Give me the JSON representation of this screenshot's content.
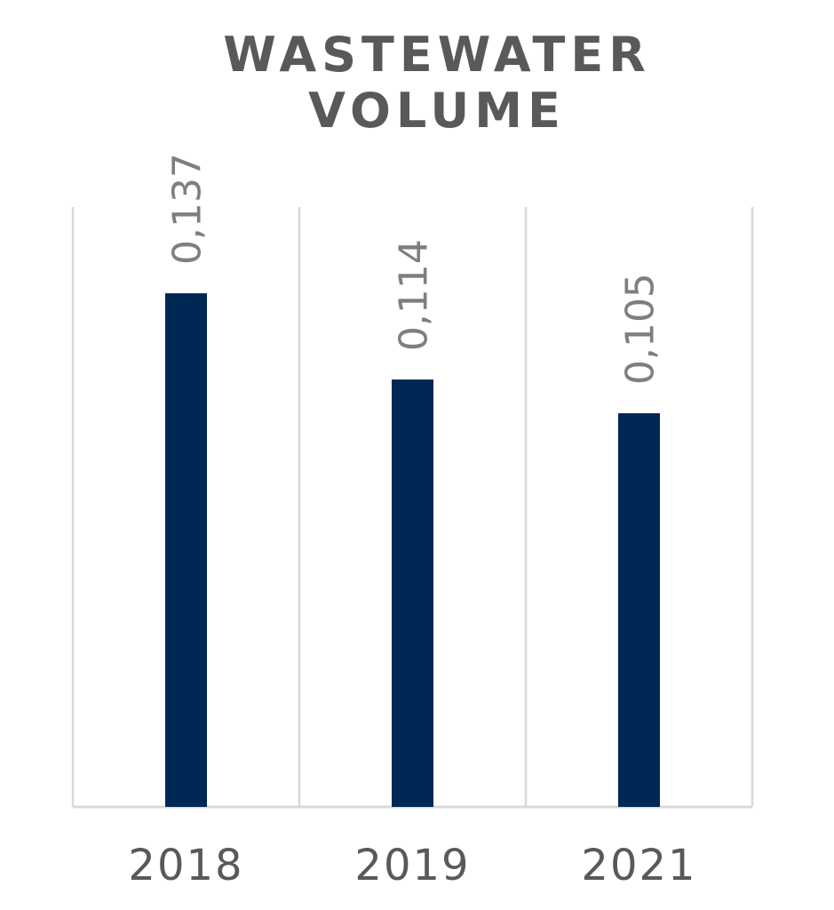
{
  "chart_data": {
    "type": "bar",
    "title_lines": [
      "WASTEWATER",
      "VOLUME"
    ],
    "categories": [
      "2018",
      "2019",
      "2021"
    ],
    "values": [
      0.137,
      0.114,
      0.105
    ],
    "value_labels": [
      "0,137",
      "0,114",
      "0,105"
    ],
    "xlabel": "",
    "ylabel": "",
    "ylim": [
      0,
      0.16
    ],
    "grid": "vertical category separators",
    "legend": "none",
    "colors": {
      "bar": "#002855",
      "grid": "#d9d9d9",
      "axis": "#d9d9d9",
      "title": "#595959",
      "data_label": "#7f7f7f",
      "tick_label": "#595959"
    }
  }
}
